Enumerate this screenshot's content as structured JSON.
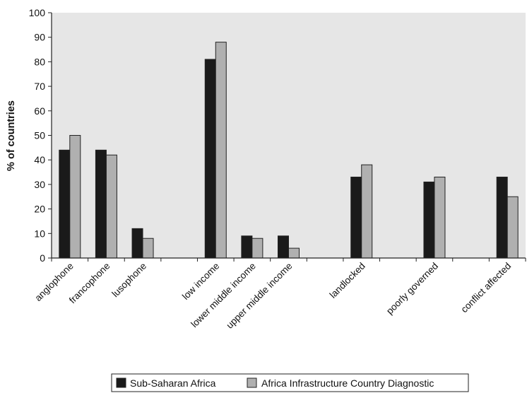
{
  "chart_data": {
    "type": "bar",
    "ylabel": "% of countries",
    "ylim": [
      0,
      100
    ],
    "yticks": [
      0,
      10,
      20,
      30,
      40,
      50,
      60,
      70,
      80,
      90,
      100
    ],
    "categories": [
      "anglophone",
      "francophone",
      "lusophone",
      "",
      "low income",
      "lower middle income",
      "upper middle income",
      "",
      "landlocked",
      "",
      "poorly governed",
      "",
      "conflict affected"
    ],
    "series": [
      {
        "name": "Sub-Saharan Africa",
        "color": "#1a1a1a",
        "values": [
          44,
          44,
          12,
          null,
          81,
          9,
          9,
          null,
          33,
          null,
          31,
          null,
          33
        ]
      },
      {
        "name": "Africa Infrastructure Country Diagnostic",
        "color": "#b0b0b0",
        "values": [
          50,
          42,
          8,
          null,
          88,
          8,
          4,
          null,
          38,
          null,
          33,
          null,
          25
        ]
      }
    ],
    "grid": false,
    "plot_background": "#e6e6e6",
    "legend_position": "bottom"
  }
}
